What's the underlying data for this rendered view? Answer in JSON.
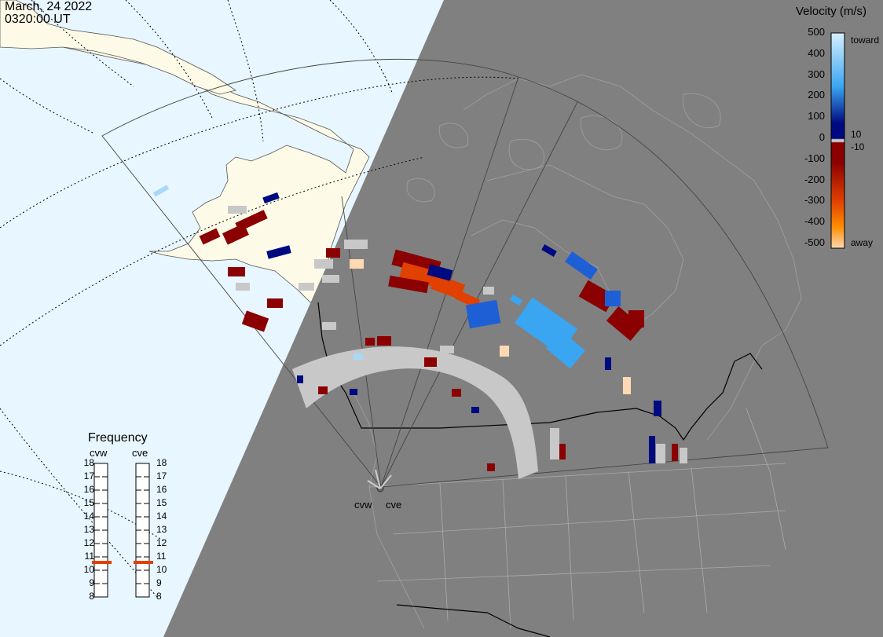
{
  "header": {
    "date": "March, 24 2022",
    "time": "0320:00 UT"
  },
  "colorbar": {
    "title": "Velocity (m/s)",
    "ticks": [
      "500",
      "400",
      "300",
      "200",
      "100",
      "0",
      "-100",
      "-200",
      "-300",
      "-400",
      "-500"
    ],
    "positive_label": "toward",
    "negative_label": "away",
    "inner_pos_label": "10",
    "inner_neg_label": "-10",
    "colors": {
      "toward_light": "#d6f0ff",
      "toward_mid": "#3aa5f0",
      "toward_dark": "#000a80",
      "away_dark": "#8b0000",
      "away_mid": "#e04000",
      "away_orange": "#ff8c00",
      "away_light": "#ffd9b3",
      "ground_scatter": "#c8c8c8"
    }
  },
  "frequency": {
    "title": "Frequency",
    "radars": [
      {
        "name": "cvw",
        "value_mhz": 10.5
      },
      {
        "name": "cve",
        "value_mhz": 10.5
      }
    ],
    "scale": [
      "18",
      "17",
      "16",
      "15",
      "14",
      "13",
      "12",
      "11",
      "10",
      "9",
      "8"
    ],
    "indicator_color": "#e04000"
  },
  "map": {
    "radar_labels": [
      "cvw",
      "cve"
    ],
    "land_color": "#fdfbe8",
    "night_color": "#808080",
    "ocean_color": "#e8f6ff"
  }
}
